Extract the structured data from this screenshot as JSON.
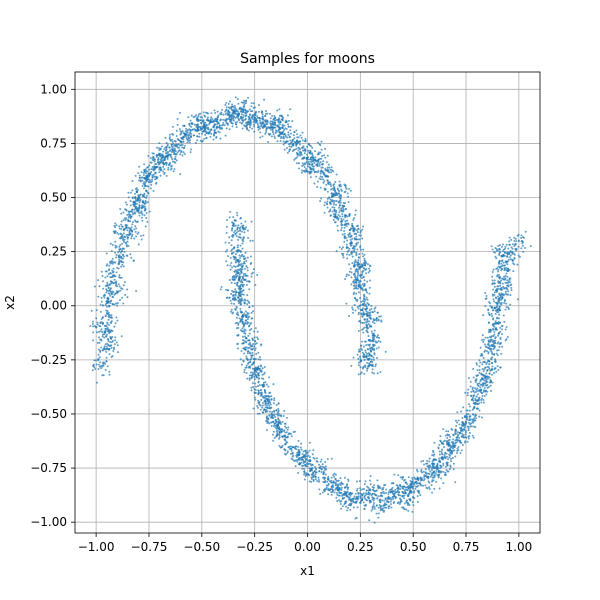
{
  "chart_data": {
    "type": "scatter",
    "title": "Samples for moons",
    "xlabel": "x1",
    "ylabel": "x2",
    "xlim": [
      -1.1,
      1.1
    ],
    "ylim": [
      -1.05,
      1.08
    ],
    "xticks": [
      -1.0,
      -0.75,
      -0.5,
      -0.25,
      0.0,
      0.25,
      0.5,
      0.75,
      1.0
    ],
    "xtick_labels": [
      "−1.00",
      "−0.75",
      "−0.50",
      "−0.25",
      "0.00",
      "0.25",
      "0.50",
      "0.75",
      "1.00"
    ],
    "yticks": [
      -1.0,
      -0.75,
      -0.5,
      -0.25,
      0.0,
      0.25,
      0.5,
      0.75,
      1.0
    ],
    "ytick_labels": [
      "−1.00",
      "−0.75",
      "−0.50",
      "−0.25",
      "0.00",
      "0.25",
      "0.50",
      "0.75",
      "1.00"
    ],
    "grid": true,
    "point_color": "#1f77b4",
    "series": [
      {
        "moon": "upper",
        "points": [
          [
            -0.95,
            -0.2
          ],
          [
            -0.96,
            -0.12
          ],
          [
            -0.94,
            -0.05
          ],
          [
            -0.95,
            0.02
          ],
          [
            -0.93,
            0.08
          ],
          [
            -0.92,
            0.14
          ],
          [
            -0.91,
            0.2
          ],
          [
            -0.89,
            0.26
          ],
          [
            -0.88,
            0.32
          ],
          [
            -0.86,
            0.37
          ],
          [
            -0.84,
            0.42
          ],
          [
            -0.82,
            0.47
          ],
          [
            -0.8,
            0.51
          ],
          [
            -0.77,
            0.56
          ],
          [
            -0.75,
            0.6
          ],
          [
            -0.72,
            0.64
          ],
          [
            -0.69,
            0.67
          ],
          [
            -0.66,
            0.71
          ],
          [
            -0.63,
            0.74
          ],
          [
            -0.6,
            0.76
          ],
          [
            -0.56,
            0.79
          ],
          [
            -0.53,
            0.81
          ],
          [
            -0.49,
            0.83
          ],
          [
            -0.45,
            0.85
          ],
          [
            -0.41,
            0.86
          ],
          [
            -0.37,
            0.87
          ],
          [
            -0.33,
            0.88
          ],
          [
            -0.29,
            0.88
          ],
          [
            -0.25,
            0.87
          ],
          [
            -0.21,
            0.86
          ],
          [
            -0.17,
            0.84
          ],
          [
            -0.13,
            0.82
          ],
          [
            -0.09,
            0.79
          ],
          [
            -0.05,
            0.76
          ],
          [
            -0.01,
            0.72
          ],
          [
            0.03,
            0.67
          ],
          [
            0.07,
            0.62
          ],
          [
            0.1,
            0.57
          ],
          [
            0.13,
            0.51
          ],
          [
            0.16,
            0.45
          ],
          [
            0.18,
            0.39
          ],
          [
            0.2,
            0.33
          ],
          [
            0.22,
            0.27
          ],
          [
            0.24,
            0.2
          ],
          [
            0.25,
            0.14
          ],
          [
            0.26,
            0.08
          ],
          [
            0.27,
            0.02
          ],
          [
            0.28,
            -0.04
          ],
          [
            0.28,
            -0.1
          ],
          [
            0.29,
            -0.16
          ],
          [
            0.29,
            -0.22
          ],
          [
            0.29,
            -0.28
          ],
          [
            -0.97,
            -0.28
          ],
          [
            -0.9,
            0.06
          ],
          [
            -0.84,
            0.33
          ],
          [
            -0.7,
            0.7
          ],
          [
            -0.52,
            0.86
          ],
          [
            -0.3,
            0.92
          ],
          [
            -0.12,
            0.86
          ],
          [
            0.05,
            0.7
          ],
          [
            0.15,
            0.53
          ],
          [
            0.22,
            0.35
          ],
          [
            0.25,
            0.18
          ],
          [
            0.3,
            -0.06
          ],
          [
            -0.98,
            -0.08
          ],
          [
            -0.88,
            0.22
          ],
          [
            -0.78,
            0.48
          ],
          [
            -0.62,
            0.7
          ],
          [
            -0.43,
            0.82
          ],
          [
            -0.2,
            0.83
          ],
          [
            -0.02,
            0.68
          ],
          [
            0.11,
            0.47
          ],
          [
            0.19,
            0.25
          ],
          [
            0.26,
            -0.02
          ],
          [
            0.31,
            -0.18
          ],
          [
            -0.93,
            -0.15
          ],
          [
            -0.76,
            0.59
          ],
          [
            -0.58,
            0.79
          ],
          [
            -0.35,
            0.9
          ],
          [
            -0.15,
            0.8
          ],
          [
            0.01,
            0.64
          ],
          [
            0.14,
            0.41
          ],
          [
            0.23,
            0.11
          ],
          [
            0.27,
            -0.25
          ],
          [
            -0.8,
            0.44
          ],
          [
            -0.67,
            0.66
          ],
          [
            -0.47,
            0.8
          ],
          [
            -0.27,
            0.85
          ],
          [
            -0.07,
            0.74
          ],
          [
            0.09,
            0.6
          ]
        ]
      },
      {
        "moon": "lower",
        "points": [
          [
            -0.32,
            0.33
          ],
          [
            -0.33,
            0.27
          ],
          [
            -0.33,
            0.21
          ],
          [
            -0.33,
            0.15
          ],
          [
            -0.32,
            0.09
          ],
          [
            -0.32,
            0.03
          ],
          [
            -0.31,
            -0.03
          ],
          [
            -0.3,
            -0.09
          ],
          [
            -0.29,
            -0.15
          ],
          [
            -0.28,
            -0.21
          ],
          [
            -0.26,
            -0.27
          ],
          [
            -0.24,
            -0.33
          ],
          [
            -0.22,
            -0.39
          ],
          [
            -0.2,
            -0.44
          ],
          [
            -0.17,
            -0.5
          ],
          [
            -0.14,
            -0.55
          ],
          [
            -0.11,
            -0.6
          ],
          [
            -0.08,
            -0.65
          ],
          [
            -0.04,
            -0.69
          ],
          [
            0.0,
            -0.73
          ],
          [
            0.04,
            -0.77
          ],
          [
            0.08,
            -0.8
          ],
          [
            0.12,
            -0.83
          ],
          [
            0.16,
            -0.85
          ],
          [
            0.2,
            -0.87
          ],
          [
            0.25,
            -0.88
          ],
          [
            0.29,
            -0.89
          ],
          [
            0.33,
            -0.89
          ],
          [
            0.37,
            -0.89
          ],
          [
            0.41,
            -0.88
          ],
          [
            0.45,
            -0.86
          ],
          [
            0.49,
            -0.84
          ],
          [
            0.53,
            -0.82
          ],
          [
            0.57,
            -0.79
          ],
          [
            0.61,
            -0.75
          ],
          [
            0.64,
            -0.71
          ],
          [
            0.68,
            -0.67
          ],
          [
            0.71,
            -0.62
          ],
          [
            0.74,
            -0.57
          ],
          [
            0.77,
            -0.51
          ],
          [
            0.79,
            -0.45
          ],
          [
            0.82,
            -0.39
          ],
          [
            0.84,
            -0.33
          ],
          [
            0.86,
            -0.27
          ],
          [
            0.87,
            -0.21
          ],
          [
            0.88,
            -0.14
          ],
          [
            0.89,
            -0.08
          ],
          [
            0.9,
            -0.02
          ],
          [
            0.91,
            0.05
          ],
          [
            0.91,
            0.11
          ],
          [
            0.92,
            0.17
          ],
          [
            0.92,
            0.23
          ],
          [
            -0.34,
            0.37
          ],
          [
            -0.3,
            0.12
          ],
          [
            -0.27,
            -0.18
          ],
          [
            -0.21,
            -0.42
          ],
          [
            -0.12,
            -0.58
          ],
          [
            0.02,
            -0.78
          ],
          [
            0.18,
            -0.91
          ],
          [
            0.35,
            -0.94
          ],
          [
            0.51,
            -0.8
          ],
          [
            0.66,
            -0.64
          ],
          [
            0.8,
            -0.42
          ],
          [
            0.88,
            -0.18
          ],
          [
            0.93,
            0.08
          ],
          [
            -0.31,
            0.18
          ],
          [
            -0.25,
            -0.3
          ],
          [
            -0.15,
            -0.53
          ],
          [
            -0.02,
            -0.7
          ],
          [
            0.14,
            -0.84
          ],
          [
            0.31,
            -0.85
          ],
          [
            0.47,
            -0.9
          ],
          [
            0.63,
            -0.77
          ],
          [
            0.75,
            -0.54
          ],
          [
            0.85,
            -0.3
          ],
          [
            0.9,
            0.01
          ],
          [
            0.94,
            0.2
          ],
          [
            -0.35,
            0.05
          ],
          [
            -0.19,
            -0.47
          ],
          [
            0.06,
            -0.75
          ],
          [
            0.23,
            -0.91
          ],
          [
            0.43,
            -0.84
          ],
          [
            0.59,
            -0.73
          ],
          [
            0.72,
            -0.59
          ],
          [
            0.83,
            -0.36
          ],
          [
            0.89,
            -0.11
          ],
          [
            0.91,
            0.26
          ],
          [
            0.97,
            0.24
          ],
          [
            1.0,
            0.3
          ],
          [
            -0.29,
            -0.05
          ]
        ]
      }
    ]
  }
}
